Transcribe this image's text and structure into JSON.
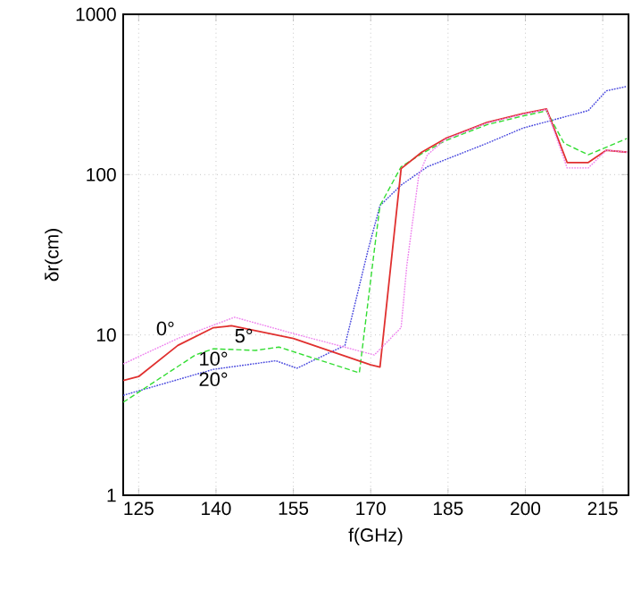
{
  "chart_data": {
    "type": "line",
    "xlabel": "f(GHz)",
    "ylabel": "δr(cm)",
    "log": "y",
    "grid": true,
    "xlim": [
      122,
      220
    ],
    "xticks": [
      125,
      140,
      155,
      170,
      185,
      200,
      215
    ],
    "ylim": [
      1,
      1000
    ],
    "yticks": [
      1,
      10,
      100,
      1000
    ],
    "series": [
      {
        "name": "0°",
        "color": "#ee82ee",
        "line_style": "dotted",
        "x": [
          122,
          132.6,
          143.6,
          155,
          170.7,
          175.9,
          177,
          179.3,
          181,
          184.5,
          192.6,
          199.5,
          204.1,
          208.1,
          212.2,
          215.7,
          219.7
        ],
        "values": [
          6.6,
          9.5,
          12.9,
          10.2,
          7.5,
          11.1,
          27,
          98,
          133,
          166,
          210,
          238,
          255,
          110,
          110,
          142,
          138
        ]
      },
      {
        "name": "5°",
        "color": "#e0302f",
        "line_style": "solid",
        "x": [
          122,
          125,
          132.6,
          139.5,
          143,
          155,
          170,
          171.8,
          175.9,
          179.9,
          184.5,
          192.6,
          199.5,
          204.1,
          208.1,
          212.2,
          215.7,
          219.7
        ],
        "values": [
          5.2,
          5.5,
          8.6,
          11.1,
          11.4,
          9.5,
          6.5,
          6.3,
          109,
          138,
          168,
          212,
          240,
          257,
          119,
          119,
          142,
          138
        ]
      },
      {
        "name": "10°",
        "color": "#33dd33",
        "line_style": "dashed",
        "x": [
          122,
          136,
          139.5,
          147.6,
          152.2,
          167.8,
          170.7,
          171.8,
          175.9,
          179.9,
          184.5,
          192.6,
          199.5,
          204.1,
          207.5,
          212.2,
          219.7
        ],
        "values": [
          3.8,
          7.5,
          8.2,
          8.0,
          8.4,
          5.8,
          33.7,
          64,
          112,
          135,
          163,
          205,
          232,
          250,
          157,
          133,
          168
        ]
      },
      {
        "name": "20°",
        "color": "#4444dd",
        "line_style": "dotted",
        "x": [
          122,
          139.5,
          151.6,
          155.7,
          165,
          169.5,
          171.8,
          175.9,
          181,
          192.6,
          199.5,
          212.2,
          215.7,
          219.7
        ],
        "values": [
          4.2,
          6.1,
          6.9,
          6.2,
          8.6,
          34,
          64,
          86,
          112,
          157,
          195,
          251,
          333,
          355
        ]
      }
    ]
  }
}
